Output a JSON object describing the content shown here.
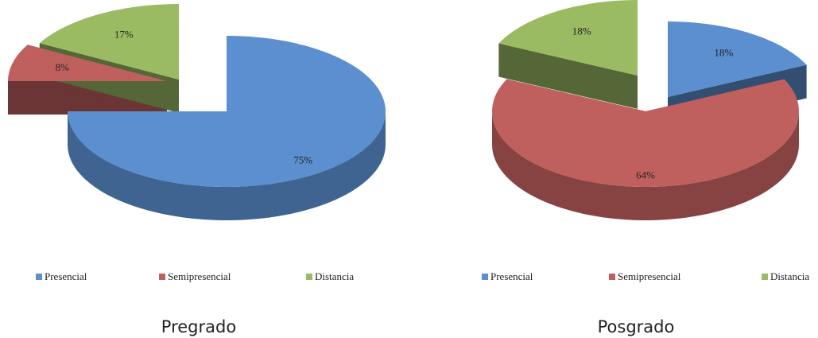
{
  "chart_data": [
    {
      "type": "pie",
      "title": "Pregrado",
      "categories": [
        "Presencial",
        "Semipresencial",
        "Distancia"
      ],
      "values": [
        75,
        8,
        17
      ],
      "value_labels": [
        "75%",
        "8%",
        "17%"
      ],
      "colors": [
        "#5b8fcf",
        "#c0605e",
        "#9bbb63"
      ],
      "legend": "bottom"
    },
    {
      "type": "pie",
      "title": "Posgrado",
      "categories": [
        "Presencial",
        "Semipresencial",
        "Distancia"
      ],
      "values": [
        18,
        64,
        18
      ],
      "value_labels": [
        "18%",
        "64%",
        "18%"
      ],
      "colors": [
        "#5b8fcf",
        "#c0605e",
        "#9bbb63"
      ],
      "legend": "bottom"
    }
  ]
}
